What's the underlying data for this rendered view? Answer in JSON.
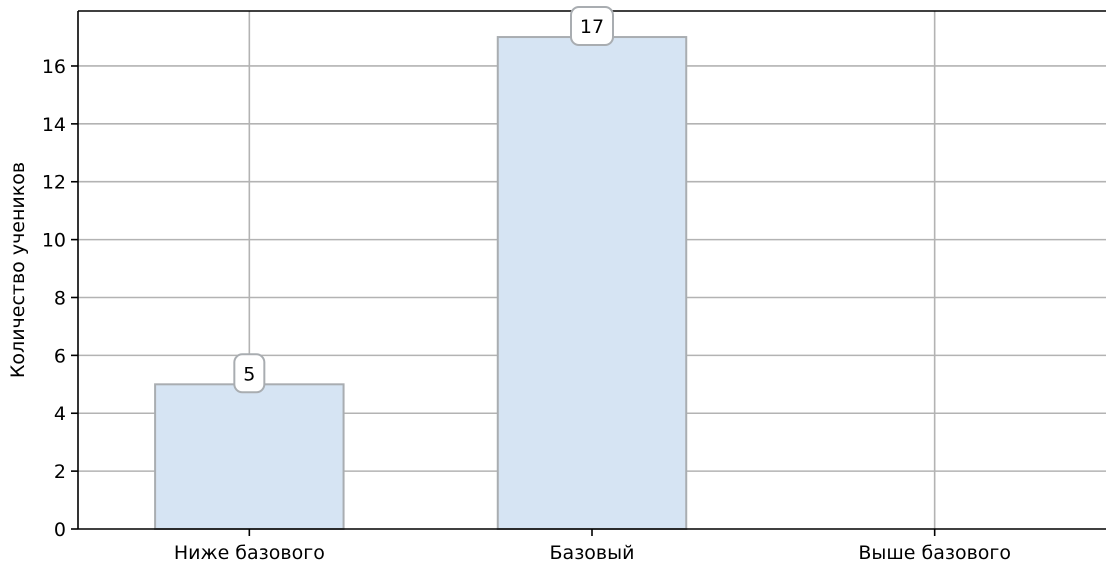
{
  "chart_data": {
    "type": "bar",
    "categories": [
      "Ниже базового",
      "Базовый",
      "Выше базового"
    ],
    "values": [
      5,
      17,
      0
    ],
    "data_labels": [
      "5",
      "17",
      ""
    ],
    "title": "",
    "xlabel": "",
    "ylabel": "Количество учеников",
    "ylim": [
      0,
      17.9
    ],
    "yticks": [
      0,
      2,
      4,
      6,
      8,
      10,
      12,
      14,
      16
    ],
    "grid": true,
    "bar_color": "#d6e4f3",
    "bar_edge_color": "#a9adb1",
    "grid_color": "#b3b3b3"
  }
}
